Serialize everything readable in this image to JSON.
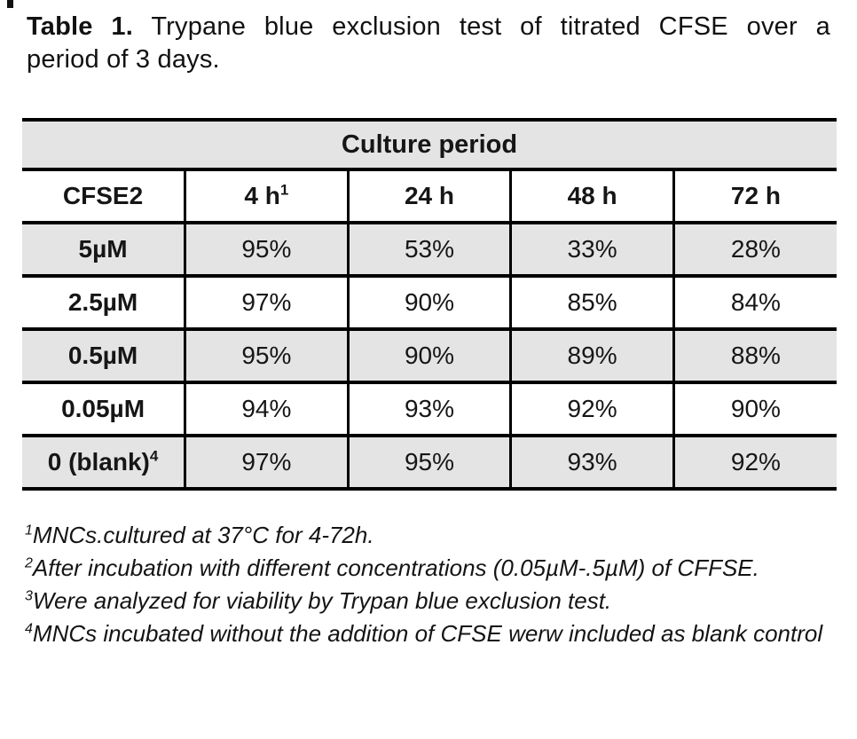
{
  "caption": {
    "prefix": "Table 1.",
    "line1_rest": "Trypane blue exclusion test of titrated CFSE over a",
    "line2": "period of 3 days."
  },
  "table": {
    "span_header": "Culture period",
    "columns": [
      {
        "label": "CFSE2",
        "sup": ""
      },
      {
        "label": "4 h",
        "sup": "1"
      },
      {
        "label": "24 h",
        "sup": ""
      },
      {
        "label": "48 h",
        "sup": ""
      },
      {
        "label": "72 h",
        "sup": ""
      }
    ],
    "rows": [
      {
        "label": "5µM",
        "sup": "",
        "values": [
          "95%",
          "53%",
          "33%",
          "28%"
        ]
      },
      {
        "label": "2.5µM",
        "sup": "",
        "values": [
          "97%",
          "90%",
          "85%",
          "84%"
        ]
      },
      {
        "label": "0.5µM",
        "sup": "",
        "values": [
          "95%",
          "90%",
          "89%",
          "88%"
        ]
      },
      {
        "label": "0.05µM",
        "sup": "",
        "values": [
          "94%",
          "93%",
          "92%",
          "90%"
        ]
      },
      {
        "label": "0 (blank)",
        "sup": "4",
        "values": [
          "97%",
          "95%",
          "93%",
          "92%"
        ]
      }
    ]
  },
  "footnotes": [
    {
      "sup": "1",
      "text": "MNCs.cultured at 37°C for 4-72h."
    },
    {
      "sup": "2",
      "text": "After incubation with different concentrations (0.05µM-.5µM) of CFFSE."
    },
    {
      "sup": "3",
      "text": "Were analyzed for viability by Trypan blue exclusion test."
    },
    {
      "sup": "4",
      "text": "MNCs incubated without the addition of CFSE werw included as blank control"
    }
  ],
  "colors": {
    "cell_gray": "#e4e4e4",
    "border": "#000000",
    "background": "#ffffff"
  }
}
